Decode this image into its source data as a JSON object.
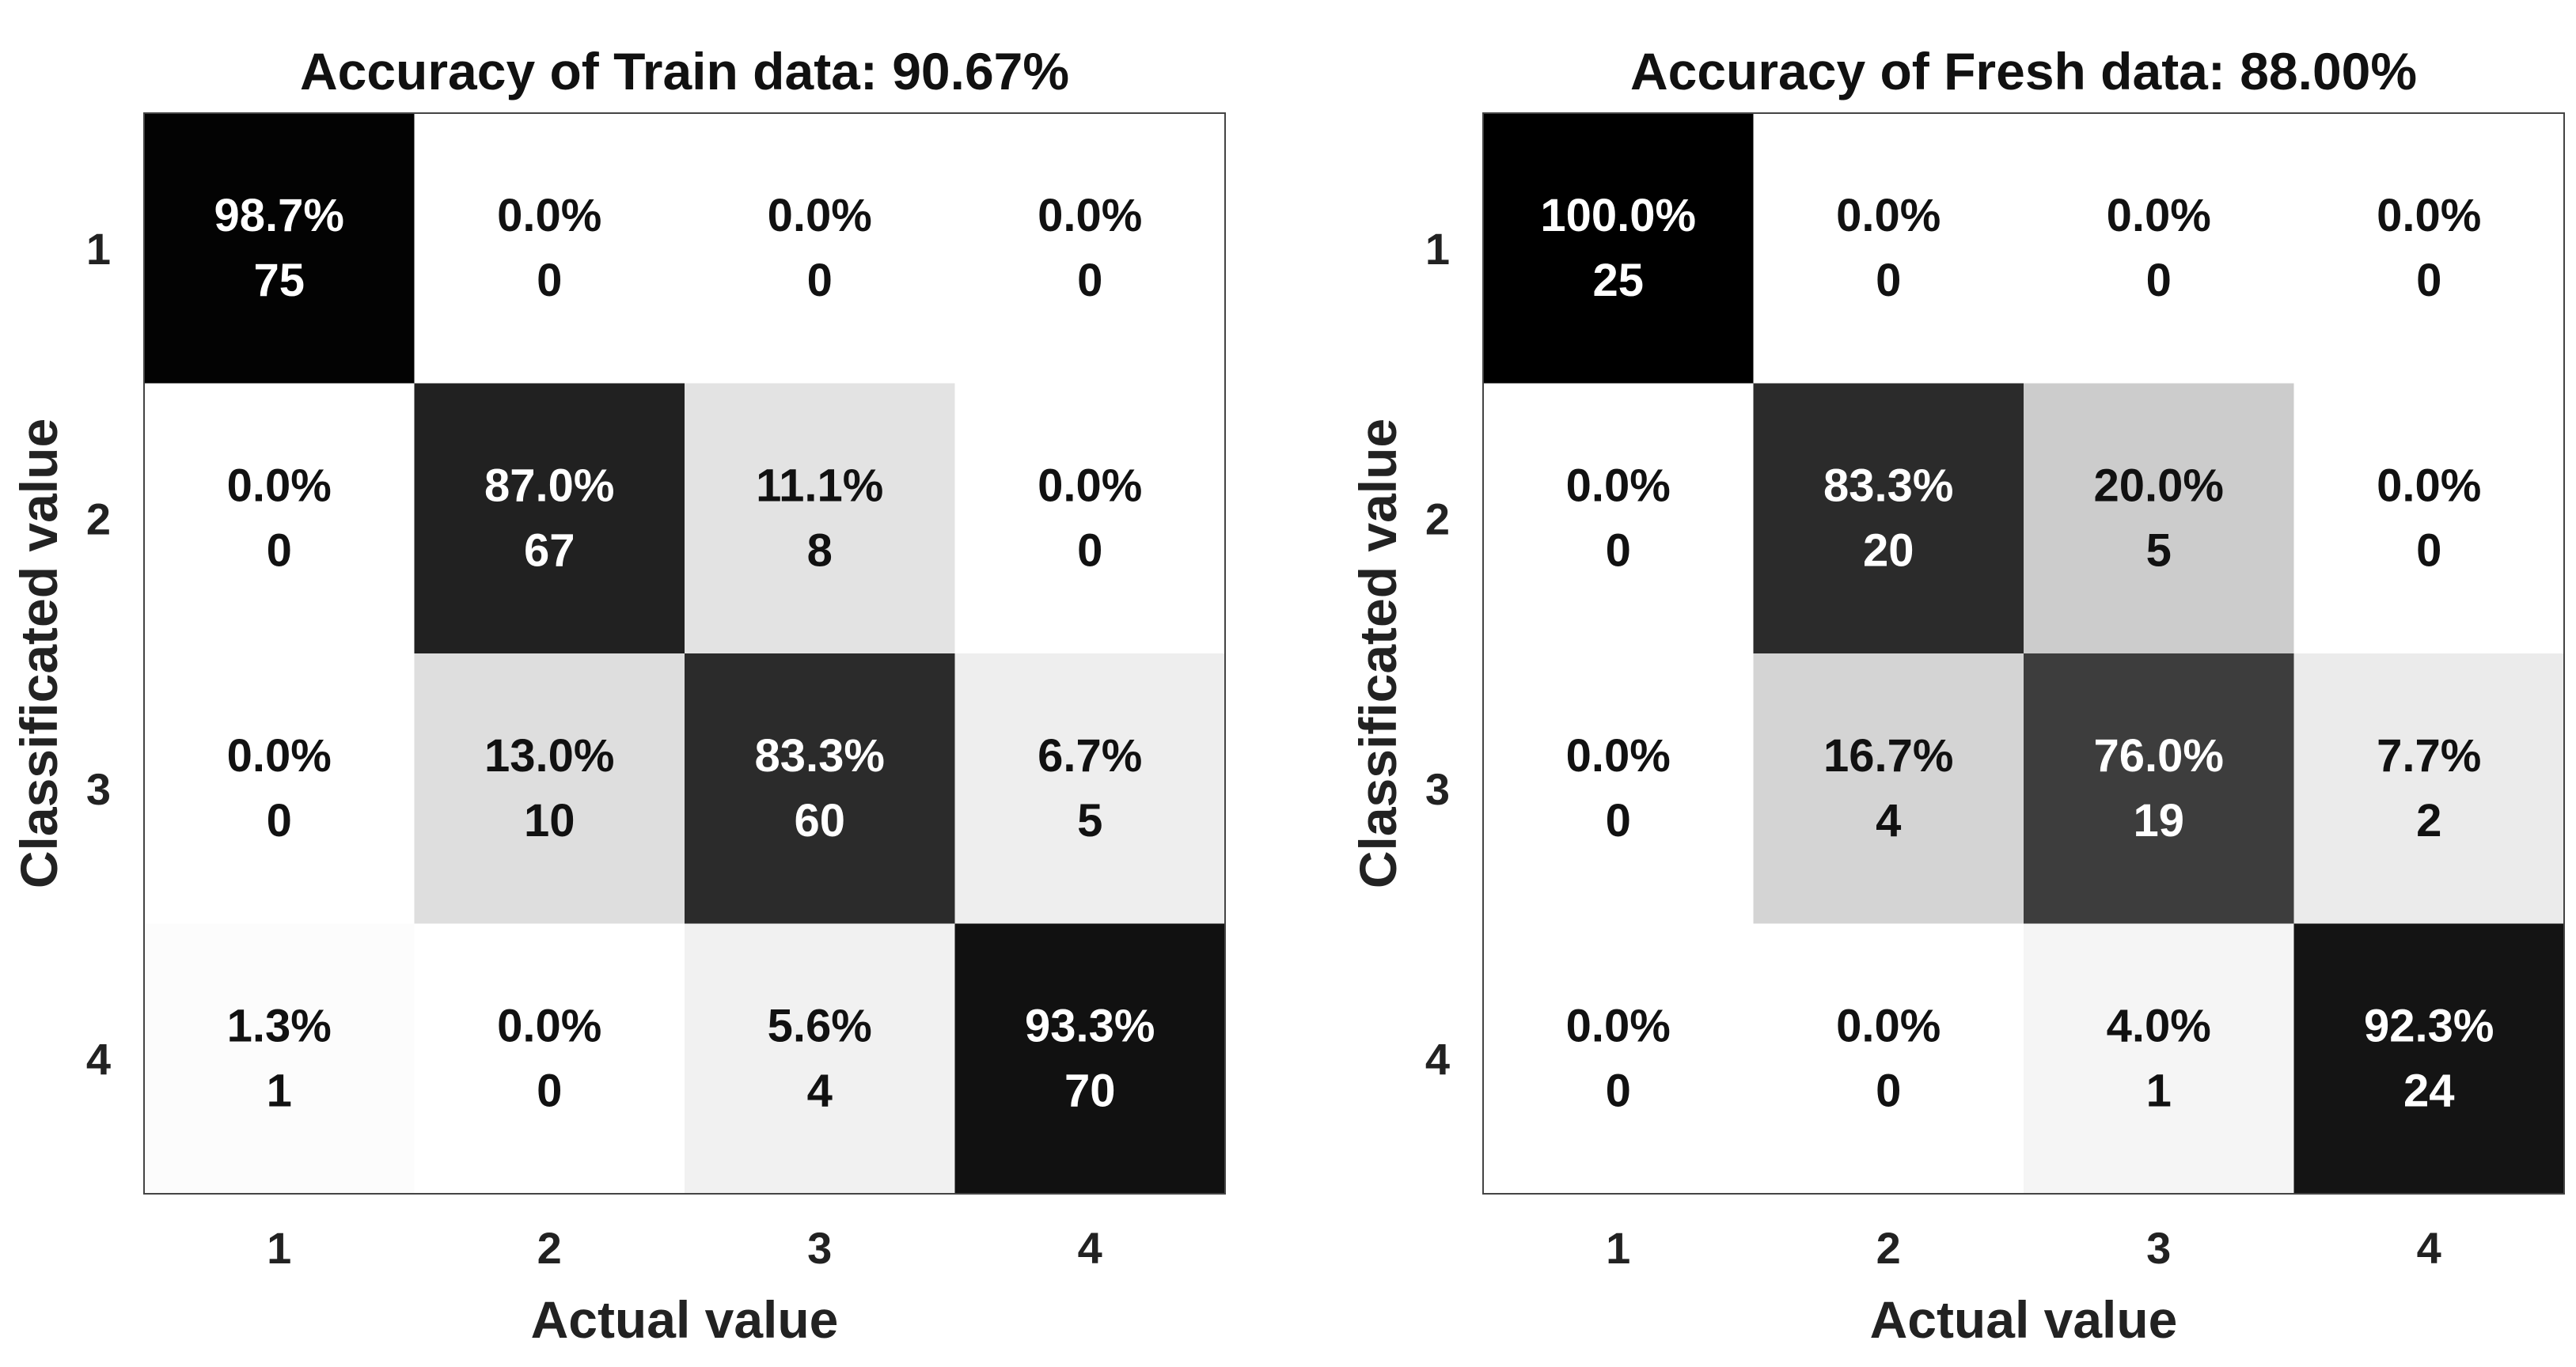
{
  "chart_data": [
    {
      "type": "heatmap",
      "title": "Accuracy of Train data: 90.67%",
      "xlabel": "Actual value",
      "ylabel": "Classificated value",
      "x_categories": [
        "1",
        "2",
        "3",
        "4"
      ],
      "y_categories": [
        "1",
        "2",
        "3",
        "4"
      ],
      "colormap": "gray-reversed",
      "colors": {
        "low": "#ffffff",
        "high": "#000000",
        "frame": "#444444"
      },
      "percent": [
        [
          "98.7%",
          "0.0%",
          "0.0%",
          "0.0%"
        ],
        [
          "0.0%",
          "87.0%",
          "11.1%",
          "0.0%"
        ],
        [
          "0.0%",
          "13.0%",
          "83.3%",
          "6.7%"
        ],
        [
          "1.3%",
          "0.0%",
          "5.6%",
          "93.3%"
        ]
      ],
      "counts": [
        [
          "75",
          "0",
          "0",
          "0"
        ],
        [
          "0",
          "67",
          "8",
          "0"
        ],
        [
          "0",
          "10",
          "60",
          "5"
        ],
        [
          "1",
          "0",
          "4",
          "70"
        ]
      ],
      "values": [
        [
          98.7,
          0.0,
          0.0,
          0.0
        ],
        [
          0.0,
          87.0,
          11.1,
          0.0
        ],
        [
          0.0,
          13.0,
          83.3,
          6.7
        ],
        [
          1.3,
          0.0,
          5.6,
          93.3
        ]
      ]
    },
    {
      "type": "heatmap",
      "title": "Accuracy of Fresh data: 88.00%",
      "xlabel": "Actual value",
      "ylabel": "Classificated value",
      "x_categories": [
        "1",
        "2",
        "3",
        "4"
      ],
      "y_categories": [
        "1",
        "2",
        "3",
        "4"
      ],
      "colormap": "gray-reversed",
      "colors": {
        "low": "#ffffff",
        "high": "#000000",
        "frame": "#444444"
      },
      "percent": [
        [
          "100.0%",
          "0.0%",
          "0.0%",
          "0.0%"
        ],
        [
          "0.0%",
          "83.3%",
          "20.0%",
          "0.0%"
        ],
        [
          "0.0%",
          "16.7%",
          "76.0%",
          "7.7%"
        ],
        [
          "0.0%",
          "0.0%",
          "4.0%",
          "92.3%"
        ]
      ],
      "counts": [
        [
          "25",
          "0",
          "0",
          "0"
        ],
        [
          "0",
          "20",
          "5",
          "0"
        ],
        [
          "0",
          "4",
          "19",
          "2"
        ],
        [
          "0",
          "0",
          "1",
          "24"
        ]
      ],
      "values": [
        [
          100.0,
          0.0,
          0.0,
          0.0
        ],
        [
          0.0,
          83.3,
          20.0,
          0.0
        ],
        [
          0.0,
          16.7,
          76.0,
          7.7
        ],
        [
          0.0,
          0.0,
          4.0,
          92.3
        ]
      ]
    }
  ]
}
